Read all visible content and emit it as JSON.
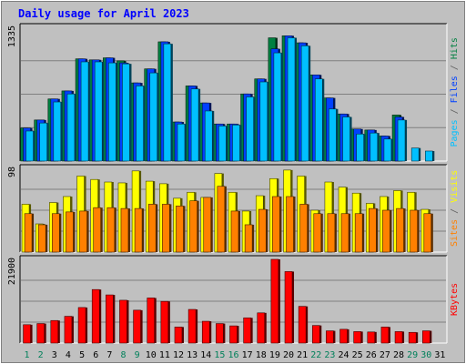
{
  "chart_data": {
    "type": "bar",
    "title": "Daily usage for April 2023",
    "categories": [
      "1",
      "2",
      "3",
      "4",
      "5",
      "6",
      "7",
      "8",
      "9",
      "10",
      "11",
      "12",
      "13",
      "14",
      "15",
      "16",
      "17",
      "18",
      "19",
      "20",
      "21",
      "22",
      "23",
      "24",
      "25",
      "26",
      "27",
      "28",
      "29",
      "30",
      "31"
    ],
    "weekend_days": [
      "1",
      "2",
      "8",
      "9",
      "15",
      "16",
      "22",
      "23",
      "29",
      "30"
    ],
    "panels": [
      {
        "key": "hits_files_pages",
        "scale_label": "1335",
        "ylim": [
          0,
          1335
        ],
        "right_label": [
          {
            "text": "Pages",
            "color": "#00c0ff"
          },
          {
            "text": " / ",
            "color": "#606060"
          },
          {
            "text": "Files",
            "color": "#0040ff"
          },
          {
            "text": " / ",
            "color": "#606060"
          },
          {
            "text": "Hits",
            "color": "#008040"
          }
        ],
        "series": [
          {
            "name": "Hits",
            "color": "#008040",
            "values": [
              330,
              410,
              620,
              700,
              1020,
              1010,
              1030,
              1000,
              780,
              920,
              1190,
              390,
              750,
              580,
              370,
              370,
              670,
              820,
              1230,
              1250,
              1180,
              860,
              630,
              470,
              320,
              310,
              250,
              460,
              0,
              0,
              0
            ]
          },
          {
            "name": "Files",
            "color": "#0040ff",
            "values": [
              330,
              410,
              620,
              700,
              1020,
              1010,
              1030,
              980,
              780,
              920,
              1190,
              390,
              750,
              580,
              370,
              370,
              670,
              820,
              1120,
              1250,
              1180,
              860,
              630,
              470,
              320,
              310,
              250,
              440,
              0,
              0,
              0
            ]
          },
          {
            "name": "Pages",
            "color": "#00c0ff",
            "values": [
              300,
              380,
              590,
              670,
              990,
              990,
              980,
              970,
              750,
              880,
              1170,
              370,
              720,
              500,
              350,
              360,
              640,
              790,
              1080,
              1230,
              1150,
              820,
              520,
              440,
              270,
              280,
              220,
              410,
              130,
              100,
              0
            ]
          }
        ]
      },
      {
        "key": "visits_sites",
        "scale_label": "98",
        "ylim": [
          0,
          98
        ],
        "right_label": [
          {
            "text": "Sites",
            "color": "#ff8000"
          },
          {
            "text": " / ",
            "color": "#606060"
          },
          {
            "text": "Visits",
            "color": "#ffff00"
          }
        ],
        "series": [
          {
            "name": "Visits",
            "color": "#ffff00",
            "values": [
              56,
              33,
              58,
              65,
              89,
              85,
              82,
              81,
              95,
              83,
              80,
              63,
              70,
              64,
              92,
              70,
              48,
              66,
              86,
              96,
              89,
              49,
              82,
              76,
              69,
              57,
              65,
              72,
              70,
              50,
              0
            ]
          },
          {
            "name": "Sites",
            "color": "#ff8000",
            "values": [
              45,
              32,
              45,
              47,
              48,
              52,
              52,
              51,
              51,
              56,
              56,
              54,
              60,
              64,
              77,
              48,
              32,
              50,
              65,
              65,
              56,
              45,
              45,
              45,
              45,
              51,
              49,
              51,
              49,
              45,
              0
            ]
          }
        ]
      },
      {
        "key": "kbytes",
        "scale_label": "21900",
        "ylim": [
          0,
          21900
        ],
        "right_label": [
          {
            "text": "KBytes",
            "color": "#ff0000"
          }
        ],
        "series": [
          {
            "name": "KBytes",
            "color": "#ff0000",
            "values": [
              4800,
              5100,
              5900,
              7000,
              9300,
              14000,
              12600,
              11200,
              8600,
              11800,
              10900,
              4200,
              8800,
              5700,
              5100,
              4500,
              6600,
              7900,
              21900,
              18700,
              9600,
              4600,
              3200,
              3600,
              3000,
              2900,
              4200,
              3000,
              2800,
              3200,
              0
            ]
          }
        ]
      }
    ],
    "colors": {
      "outer_bg": "#c0c0c0",
      "plot_bg": "#c0c0c0",
      "title_color": "#0000ff",
      "weekday_label": "#000000",
      "weekend_label": "#00805a",
      "gridline": "#808080"
    }
  }
}
